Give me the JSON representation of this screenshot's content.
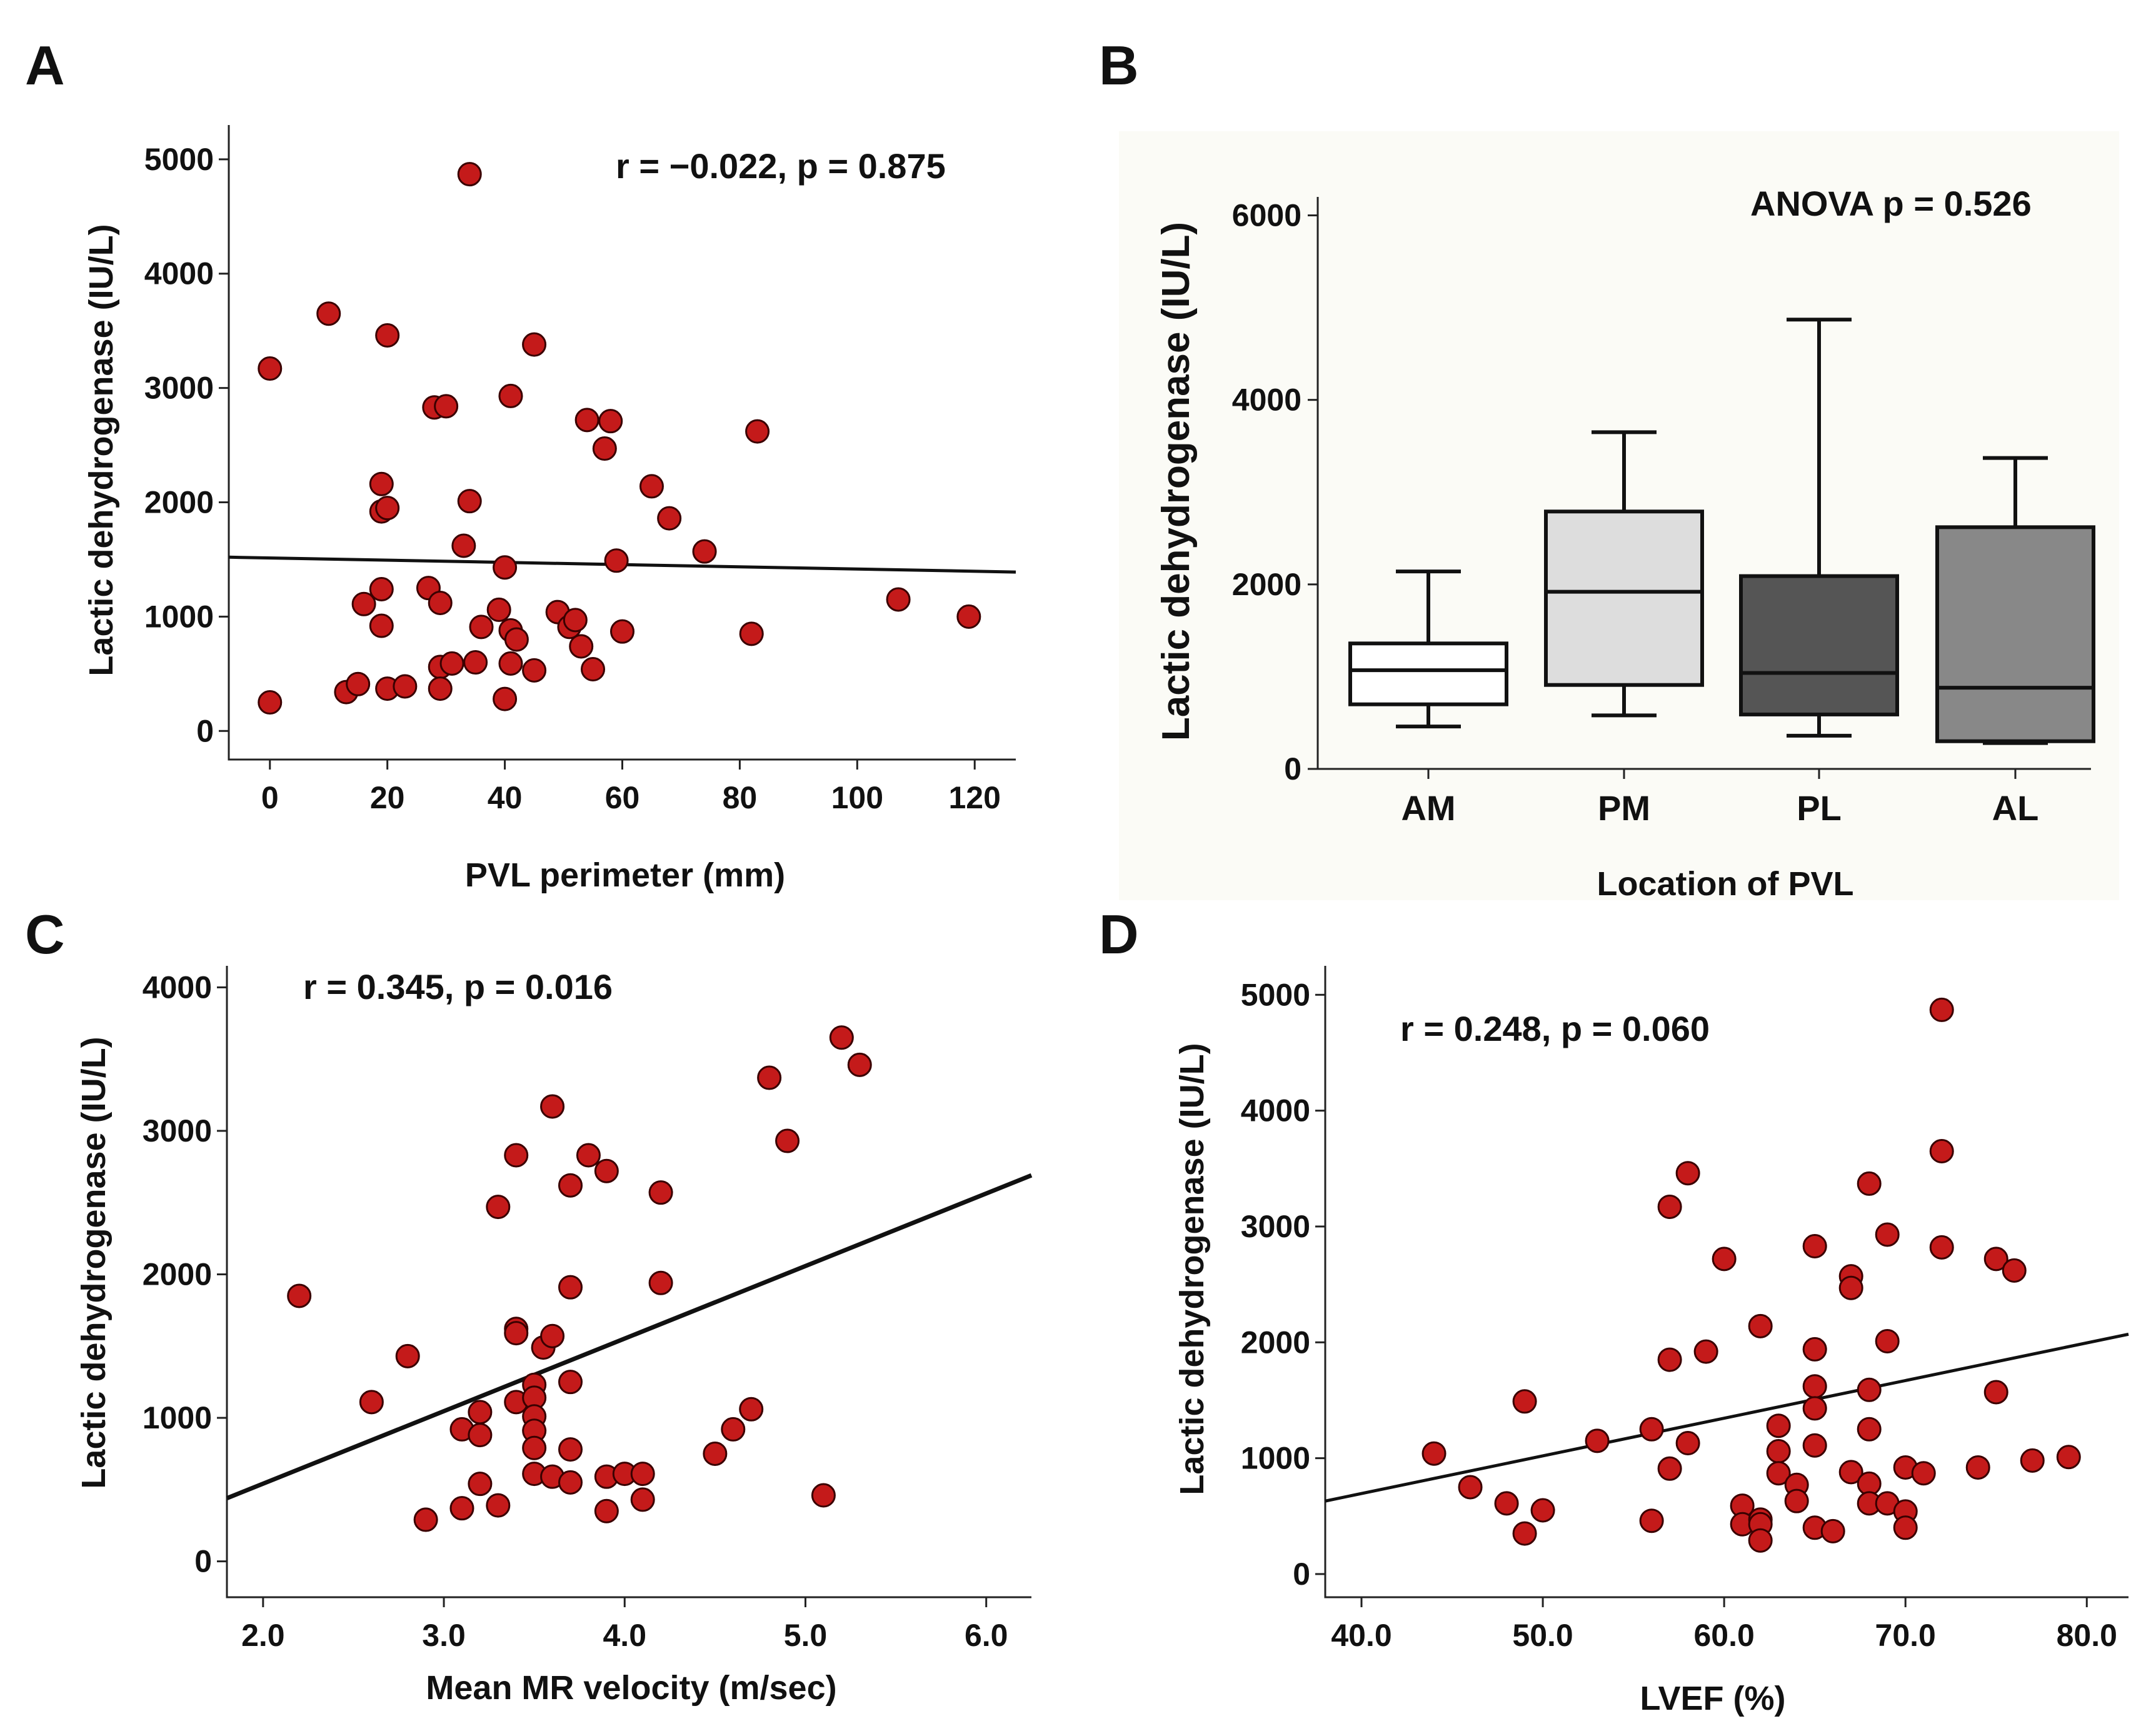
{
  "chart_data": [
    {
      "panel": "A",
      "type": "scatter",
      "xlabel": "PVL perimeter (mm)",
      "ylabel": "Lactic dehydrogenase (IU/L)",
      "annotation": "r = −0.022, p = 0.875",
      "xlim": [
        -7,
        127
      ],
      "ylim": [
        -250,
        5300
      ],
      "xticks": [
        0,
        20,
        40,
        60,
        80,
        100,
        120
      ],
      "yticks": [
        0,
        1000,
        2000,
        3000,
        4000,
        5000
      ],
      "fit_line": {
        "x": [
          -7,
          127
        ],
        "y": [
          1520,
          1390
        ]
      },
      "points": [
        [
          0,
          3170
        ],
        [
          0,
          250
        ],
        [
          10,
          3650
        ],
        [
          20,
          3460
        ],
        [
          13,
          340
        ],
        [
          15,
          410
        ],
        [
          16,
          1110
        ],
        [
          19,
          2160
        ],
        [
          19,
          1240
        ],
        [
          19,
          1920
        ],
        [
          19,
          920
        ],
        [
          20,
          1950
        ],
        [
          20,
          370
        ],
        [
          23,
          390
        ],
        [
          27,
          1250
        ],
        [
          28,
          2830
        ],
        [
          29,
          1120
        ],
        [
          29,
          560
        ],
        [
          29,
          370
        ],
        [
          30,
          2840
        ],
        [
          31,
          590
        ],
        [
          34,
          4870
        ],
        [
          34,
          2010
        ],
        [
          33,
          1620
        ],
        [
          35,
          600
        ],
        [
          36,
          910
        ],
        [
          39,
          1060
        ],
        [
          40,
          1430
        ],
        [
          40,
          280
        ],
        [
          41,
          2930
        ],
        [
          41,
          590
        ],
        [
          41,
          880
        ],
        [
          42,
          800
        ],
        [
          45,
          3380
        ],
        [
          45,
          530
        ],
        [
          49,
          1040
        ],
        [
          51,
          910
        ],
        [
          52,
          970
        ],
        [
          53,
          740
        ],
        [
          54,
          2720
        ],
        [
          55,
          540
        ],
        [
          57,
          2470
        ],
        [
          58,
          2710
        ],
        [
          59,
          1490
        ],
        [
          60,
          870
        ],
        [
          65,
          2140
        ],
        [
          68,
          1860
        ],
        [
          74,
          1570
        ],
        [
          82,
          850
        ],
        [
          83,
          2620
        ],
        [
          107,
          1150
        ],
        [
          119,
          1000
        ]
      ]
    },
    {
      "panel": "B",
      "type": "boxplot",
      "xlabel": "Location of PVL",
      "ylabel": "Lactic dehydrogenase (IU/L)",
      "annotation": "ANOVA p = 0.526",
      "ylim": [
        0,
        6200
      ],
      "yticks": [
        0,
        2000,
        4000,
        6000
      ],
      "categories": [
        "AM",
        "PM",
        "PL",
        "AL"
      ],
      "boxes": [
        {
          "min": 460,
          "q1": 700,
          "median": 1070,
          "q3": 1360,
          "max": 2140,
          "color": "#ffffff"
        },
        {
          "min": 580,
          "q1": 910,
          "median": 1920,
          "q3": 2790,
          "max": 3650,
          "color": "#dddddd"
        },
        {
          "min": 360,
          "q1": 590,
          "median": 1040,
          "q3": 2090,
          "max": 4870,
          "color": "#555555"
        },
        {
          "min": 280,
          "q1": 300,
          "median": 880,
          "q3": 2620,
          "max": 3370,
          "color": "#888888"
        }
      ]
    },
    {
      "panel": "C",
      "type": "scatter",
      "xlabel": "Mean MR velocity (m/sec)",
      "ylabel": "Lactic dehydrogenase (IU/L)",
      "annotation": "r = 0.345, p = 0.016",
      "xlim": [
        1.8,
        6.25
      ],
      "ylim": [
        -250,
        4150
      ],
      "xticks": [
        2.0,
        3.0,
        4.0,
        5.0,
        6.0
      ],
      "yticks": [
        0,
        1000,
        2000,
        3000,
        4000
      ],
      "fit_line": {
        "x": [
          1.8,
          6.25
        ],
        "y": [
          440,
          2690
        ]
      },
      "points": [
        [
          2.2,
          1850
        ],
        [
          2.6,
          1110
        ],
        [
          2.8,
          1430
        ],
        [
          2.9,
          290
        ],
        [
          3.1,
          920
        ],
        [
          3.1,
          370
        ],
        [
          3.2,
          1040
        ],
        [
          3.2,
          880
        ],
        [
          3.2,
          540
        ],
        [
          3.3,
          2470
        ],
        [
          3.3,
          390
        ],
        [
          3.4,
          2830
        ],
        [
          3.4,
          1620
        ],
        [
          3.4,
          1590
        ],
        [
          3.4,
          1110
        ],
        [
          3.5,
          1230
        ],
        [
          3.5,
          1140
        ],
        [
          3.5,
          1010
        ],
        [
          3.5,
          910
        ],
        [
          3.5,
          790
        ],
        [
          3.5,
          610
        ],
        [
          3.55,
          1490
        ],
        [
          3.6,
          3170
        ],
        [
          3.6,
          1570
        ],
        [
          3.6,
          590
        ],
        [
          3.7,
          2620
        ],
        [
          3.7,
          1910
        ],
        [
          3.7,
          1250
        ],
        [
          3.7,
          780
        ],
        [
          3.7,
          550
        ],
        [
          3.8,
          2830
        ],
        [
          3.9,
          2720
        ],
        [
          3.9,
          590
        ],
        [
          3.9,
          350
        ],
        [
          4.0,
          610
        ],
        [
          4.1,
          610
        ],
        [
          4.1,
          430
        ],
        [
          4.2,
          2570
        ],
        [
          4.2,
          1940
        ],
        [
          4.5,
          750
        ],
        [
          4.6,
          920
        ],
        [
          4.7,
          1060
        ],
        [
          4.8,
          3370
        ],
        [
          4.9,
          2930
        ],
        [
          5.1,
          460
        ],
        [
          5.2,
          3650
        ],
        [
          5.3,
          3460
        ]
      ]
    },
    {
      "panel": "D",
      "type": "scatter",
      "xlabel": "LVEF (%)",
      "ylabel": "Lactic dehydrogenase (IU/L)",
      "annotation": "r = 0.248, p = 0.060",
      "xlim": [
        38,
        82.3
      ],
      "ylim": [
        -200,
        5250
      ],
      "xticks": [
        40.0,
        50.0,
        60.0,
        70.0,
        80.0
      ],
      "yticks": [
        0,
        1000,
        2000,
        3000,
        4000,
        5000
      ],
      "fit_line": {
        "x": [
          38,
          82.3
        ],
        "y": [
          630,
          2070
        ]
      },
      "points": [
        [
          44,
          1040
        ],
        [
          46,
          750
        ],
        [
          48,
          610
        ],
        [
          49,
          1490
        ],
        [
          49,
          350
        ],
        [
          50,
          550
        ],
        [
          53,
          1150
        ],
        [
          56,
          1250
        ],
        [
          56,
          460
        ],
        [
          57,
          3170
        ],
        [
          57,
          1850
        ],
        [
          57,
          910
        ],
        [
          58,
          3460
        ],
        [
          58,
          1130
        ],
        [
          59,
          1920
        ],
        [
          60,
          2720
        ],
        [
          61,
          590
        ],
        [
          61,
          430
        ],
        [
          62,
          2140
        ],
        [
          62,
          470
        ],
        [
          62,
          430
        ],
        [
          62,
          290
        ],
        [
          63,
          1280
        ],
        [
          63,
          1060
        ],
        [
          63,
          870
        ],
        [
          64,
          770
        ],
        [
          64,
          630
        ],
        [
          65,
          2830
        ],
        [
          65,
          1940
        ],
        [
          65,
          1620
        ],
        [
          65,
          1430
        ],
        [
          65,
          1110
        ],
        [
          65,
          400
        ],
        [
          66,
          370
        ],
        [
          67,
          2570
        ],
        [
          67,
          2470
        ],
        [
          67,
          880
        ],
        [
          68,
          3370
        ],
        [
          68,
          1590
        ],
        [
          68,
          1250
        ],
        [
          68,
          780
        ],
        [
          68,
          610
        ],
        [
          69,
          2930
        ],
        [
          69,
          2010
        ],
        [
          69,
          610
        ],
        [
          70,
          920
        ],
        [
          70,
          540
        ],
        [
          70,
          400
        ],
        [
          71,
          870
        ],
        [
          72,
          4870
        ],
        [
          72,
          3650
        ],
        [
          72,
          2820
        ],
        [
          74,
          920
        ],
        [
          75,
          2720
        ],
        [
          75,
          1570
        ],
        [
          76,
          2620
        ],
        [
          77,
          980
        ],
        [
          79,
          1010
        ]
      ]
    }
  ]
}
